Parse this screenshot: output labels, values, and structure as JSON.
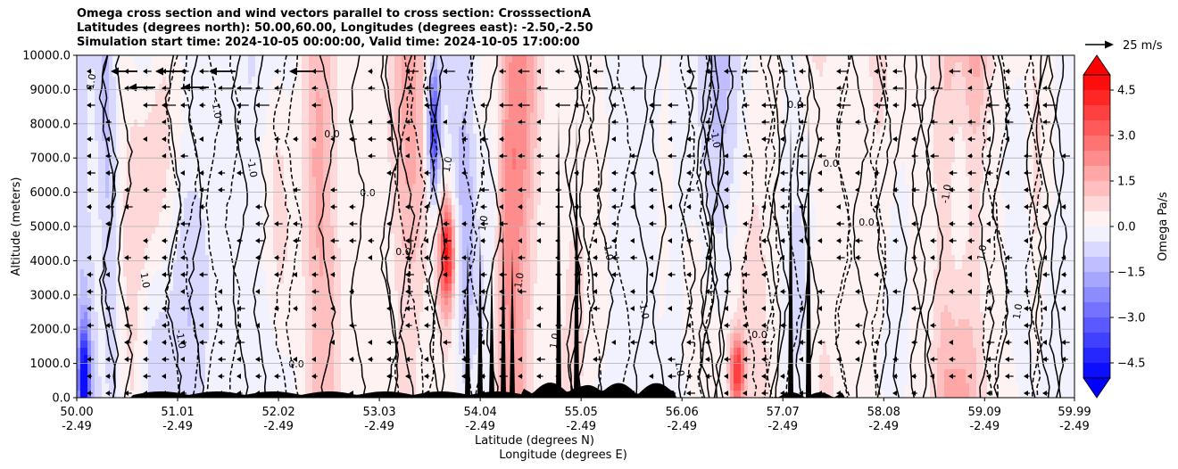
{
  "chart_data": {
    "type": "heatmap",
    "title_lines": [
      "Omega cross section and wind vectors parallel to cross section: CrosssectionA",
      "Latitudes (degrees north): 50.00,60.00, Longitudes (degrees east): -2.50,-2.50",
      "Simulation start time: 2024-10-05 00:00:00, Valid time: 2024-10-05 17:00:00"
    ],
    "ylabel": "Altitude (meters)",
    "xlabel_lat": "Latitude (degrees N)",
    "xlabel_lon": "Longitude (degrees E)",
    "ylim": [
      0,
      10000
    ],
    "yticks": [
      "0.0",
      "1000.0",
      "2000.0",
      "3000.0",
      "4000.0",
      "5000.0",
      "6000.0",
      "7000.0",
      "8000.0",
      "9000.0",
      "10000.0"
    ],
    "xticks_lat": [
      "50.00",
      "51.01",
      "52.02",
      "53.03",
      "54.04",
      "55.05",
      "56.06",
      "57.07",
      "58.08",
      "59.09",
      "59.99"
    ],
    "xticks_lon": [
      "-2.49",
      "-2.49",
      "-2.49",
      "-2.49",
      "-2.49",
      "-2.49",
      "-2.49",
      "-2.49",
      "-2.49",
      "-2.49",
      "-2.49"
    ],
    "grid_y": true,
    "colorbar": {
      "label": "Omega Pa/s",
      "ticks": [
        "4.5",
        "3.0",
        "1.5",
        "0.0",
        "−1.5",
        "−3.0",
        "−4.5"
      ],
      "tick_values": [
        4.5,
        3.0,
        1.5,
        0.0,
        -1.5,
        -3.0,
        -4.5
      ],
      "range": [
        -5.0,
        5.0
      ],
      "levels": 20,
      "color_max": "#ff0000",
      "color_min": "#0000ff",
      "color_mid": "#ffffff"
    },
    "quiver_key": "25 m/s",
    "contour_labels": [
      "1.0",
      "-1.0",
      "0.0",
      "1.0",
      "-1.0",
      "0.0",
      "1.0",
      "-1.0",
      "0.0",
      "-1.0",
      "1.0",
      "0.0",
      "1.0",
      "-1.0",
      "0.0",
      "1.0",
      "-1.0",
      "0.0",
      "-1.0",
      "1.0",
      "0.0",
      "1.0",
      "-1.0",
      "0.0"
    ]
  }
}
